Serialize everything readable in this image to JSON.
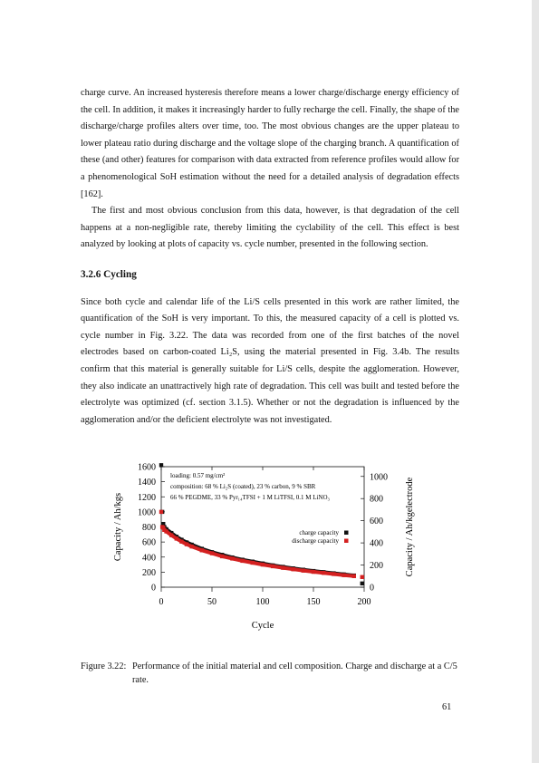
{
  "text": {
    "p1": "charge curve. An increased hysteresis therefore means a lower charge/discharge energy efficiency of the cell. In addition, it makes it increasingly harder to fully recharge the cell. Finally, the shape of the discharge/charge profiles alters over time, too. The most obvious changes are the upper plateau to lower plateau ratio during discharge and the voltage slope of the charging branch. A quantification of these (and other) features for comparison with data extracted from reference profiles would allow for a phenomenological SoH estimation without the need for a detailed analysis of degradation effects [162].",
    "p2": "The first and most obvious conclusion from this data, however, is that degradation of the cell happens at a non-negligible rate, thereby limiting the cyclability of the cell. This effect is best analyzed by looking at plots of capacity vs. cycle number, presented in the following section.",
    "section_heading": "3.2.6 Cycling",
    "p3": "Since both cycle and calendar life of the Li/S cells presented in this work are rather limited, the quantification of the SoH is very important. To this, the measured capacity of a cell is plotted vs. cycle number in Fig. 3.22. The data was recorded from one of the first batches of the novel electrodes based on carbon-coated Li₂S, using the material presented in Fig. 3.4b. The results confirm that this material is generally suitable for Li/S cells, despite the agglomeration. However, they also indicate an unattractively high rate of degradation. This cell was built and tested before the electrolyte was optimized (cf. section 3.1.5). Whether or not the degradation is influenced by the agglomeration and/or the deficient electrolyte was not investigated."
  },
  "figure": {
    "caption_label": "Figure 3.22:",
    "caption_body": "Performance of the initial material and cell composition. Charge and discharge at a C/5 rate.",
    "info_box": {
      "loading": "loading: 0.57 mg/cm²",
      "composition": "composition: 68 % Li₂S (coated), 23 % carbon, 9 % SBR",
      "electrolyte": "66 % PEGDME, 33 % Pyr₁₄TFSI + 1 M LiTFSI, 0.1 M LiNO₃"
    },
    "colors": {
      "charge": "#111111",
      "discharge": "#d42020"
    }
  },
  "chart_data": {
    "type": "scatter",
    "xlabel": "Cycle",
    "ylabel": "Capacity / Ah/kgs",
    "ylabel_right": "Capacity / Ah/kgelectrode",
    "xlim": [
      0,
      200
    ],
    "ylim": [
      0,
      1600
    ],
    "ylim_right": [
      0,
      1088
    ],
    "x_ticks": [
      0,
      50,
      100,
      150,
      200
    ],
    "y_ticks": [
      0,
      200,
      400,
      600,
      800,
      1000,
      1200,
      1400,
      1600
    ],
    "y_right_ticks": [
      0,
      200,
      400,
      600,
      800,
      1000
    ],
    "legend_position": "right",
    "series": [
      {
        "name": "charge capacity",
        "x": [
          0,
          1,
          2,
          3,
          5,
          10,
          15,
          20,
          25,
          30,
          40,
          50,
          60,
          70,
          80,
          90,
          100,
          110,
          120,
          130,
          140,
          150,
          160,
          170,
          180,
          190,
          198
        ],
        "y": [
          1620,
          1000,
          840,
          800,
          770,
          720,
          670,
          630,
          595,
          565,
          510,
          465,
          430,
          395,
          365,
          340,
          315,
          290,
          270,
          250,
          232,
          215,
          200,
          185,
          170,
          155,
          50
        ]
      },
      {
        "name": "discharge capacity",
        "x": [
          0,
          1,
          2,
          3,
          5,
          10,
          15,
          20,
          25,
          30,
          40,
          50,
          60,
          70,
          80,
          90,
          100,
          110,
          120,
          130,
          140,
          150,
          160,
          170,
          180,
          190,
          198
        ],
        "y": [
          1000,
          800,
          790,
          760,
          740,
          690,
          645,
          605,
          570,
          540,
          490,
          450,
          410,
          380,
          350,
          325,
          300,
          278,
          257,
          238,
          220,
          204,
          190,
          175,
          160,
          147,
          135
        ]
      }
    ]
  },
  "page_number": "61"
}
